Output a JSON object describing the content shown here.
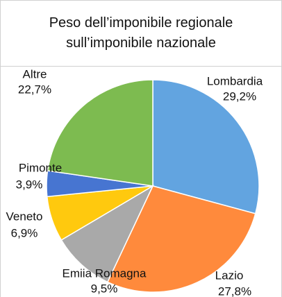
{
  "chart_data": {
    "type": "pie",
    "title": "Peso dell’imponibile regionale sull’imponibile nazionale",
    "categories": [
      "Lombardia",
      "Lazio",
      "Emiia Romagna",
      "Veneto",
      "Pimonte",
      "Altre"
    ],
    "values": [
      29.2,
      27.8,
      9.5,
      6.9,
      3.9,
      22.7
    ],
    "value_labels": [
      "29,2%",
      "27,8%",
      "9,5%",
      "6,9%",
      "3,9%",
      "22,7%"
    ],
    "colors": [
      "#62a4e0",
      "#ff8a3c",
      "#a9a9a9",
      "#ffc90e",
      "#4775d1",
      "#7dbb50"
    ]
  }
}
